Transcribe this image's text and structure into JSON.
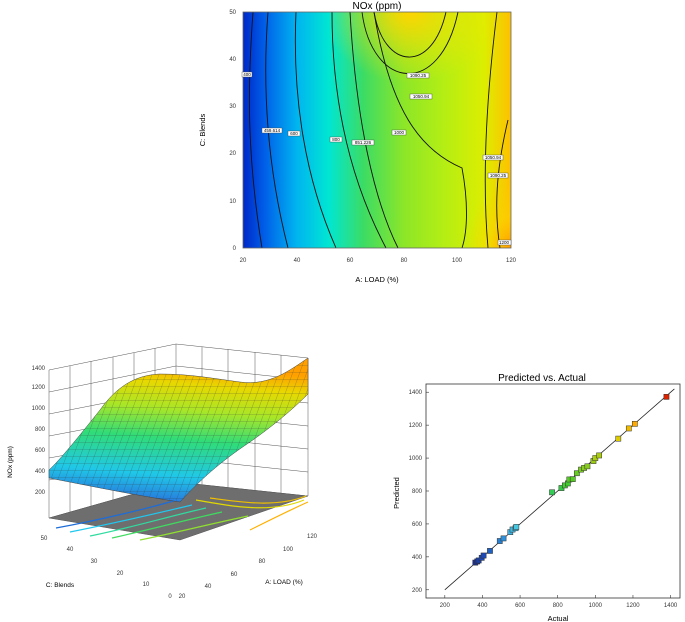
{
  "chart_data": [
    {
      "type": "contour",
      "title": "NOx (ppm)",
      "xlabel": "A: LOAD  (%)",
      "ylabel": "C: Blends",
      "xlim": [
        20,
        120
      ],
      "ylim": [
        0,
        50
      ],
      "xticks": [
        "20",
        "40",
        "60",
        "80",
        "100",
        "120"
      ],
      "yticks": [
        "0",
        "10",
        "20",
        "30",
        "40",
        "50"
      ],
      "contour_labels": [
        "400",
        "459.614",
        "600",
        "800",
        "851.226",
        "1000",
        "1050.25",
        "1050.94",
        "1090.25",
        "1050.94",
        "1090.25",
        "1200"
      ],
      "colors": [
        "#0033cc",
        "#00ccee",
        "#33dd66",
        "#aaee22",
        "#ffdd00",
        "#ffaa00"
      ]
    },
    {
      "type": "surface3d",
      "zlabel": "NOx (ppm)",
      "xlabel": "A: LOAD  (%)",
      "ylabel": "C: Blends",
      "zticks": [
        "200",
        "400",
        "600",
        "800",
        "1000",
        "1200",
        "1400"
      ],
      "xticks": [
        "20",
        "40",
        "60",
        "80",
        "100",
        "120"
      ],
      "yticks": [
        "0",
        "10",
        "20",
        "30",
        "40",
        "50"
      ]
    },
    {
      "type": "scatter",
      "title": "Predicted vs. Actual",
      "xlabel": "Actual",
      "ylabel": "Predicted",
      "xlim": [
        100,
        1450
      ],
      "ylim": [
        150,
        1450
      ],
      "xticks": [
        "200",
        "400",
        "600",
        "800",
        "1000",
        "1200",
        "1400"
      ],
      "yticks": [
        "200",
        "400",
        "600",
        "800",
        "1000",
        "1200",
        "1400"
      ],
      "points": [
        {
          "x": 362,
          "y": 365,
          "c": "#1a2f9a"
        },
        {
          "x": 372,
          "y": 372,
          "c": "#1a2f9a"
        },
        {
          "x": 380,
          "y": 378,
          "c": "#1a3faa"
        },
        {
          "x": 396,
          "y": 394,
          "c": "#1e48b4"
        },
        {
          "x": 406,
          "y": 408,
          "c": "#1e48b4"
        },
        {
          "x": 440,
          "y": 436,
          "c": "#2060c0"
        },
        {
          "x": 492,
          "y": 496,
          "c": "#2a80d0"
        },
        {
          "x": 512,
          "y": 512,
          "c": "#3090d8"
        },
        {
          "x": 548,
          "y": 550,
          "c": "#40b0e0"
        },
        {
          "x": 560,
          "y": 566,
          "c": "#40b8e0"
        },
        {
          "x": 576,
          "y": 574,
          "c": "#48c0e0"
        },
        {
          "x": 580,
          "y": 582,
          "c": "#48c8e0"
        },
        {
          "x": 770,
          "y": 792,
          "c": "#33cc55"
        },
        {
          "x": 820,
          "y": 818,
          "c": "#33cc44"
        },
        {
          "x": 838,
          "y": 834,
          "c": "#44cc33"
        },
        {
          "x": 854,
          "y": 846,
          "c": "#44cc33"
        },
        {
          "x": 862,
          "y": 870,
          "c": "#55cc22"
        },
        {
          "x": 880,
          "y": 872,
          "c": "#55cc22"
        },
        {
          "x": 902,
          "y": 908,
          "c": "#66cc22"
        },
        {
          "x": 924,
          "y": 930,
          "c": "#77cc22"
        },
        {
          "x": 940,
          "y": 940,
          "c": "#88cc22"
        },
        {
          "x": 958,
          "y": 950,
          "c": "#88cc22"
        },
        {
          "x": 990,
          "y": 982,
          "c": "#99cc11"
        },
        {
          "x": 1000,
          "y": 1000,
          "c": "#aacc11"
        },
        {
          "x": 1020,
          "y": 1016,
          "c": "#aacc11"
        },
        {
          "x": 1122,
          "y": 1118,
          "c": "#ddcc00"
        },
        {
          "x": 1178,
          "y": 1180,
          "c": "#eebb00"
        },
        {
          "x": 1210,
          "y": 1208,
          "c": "#ffaa00"
        },
        {
          "x": 1378,
          "y": 1372,
          "c": "#dd2200"
        }
      ]
    }
  ]
}
